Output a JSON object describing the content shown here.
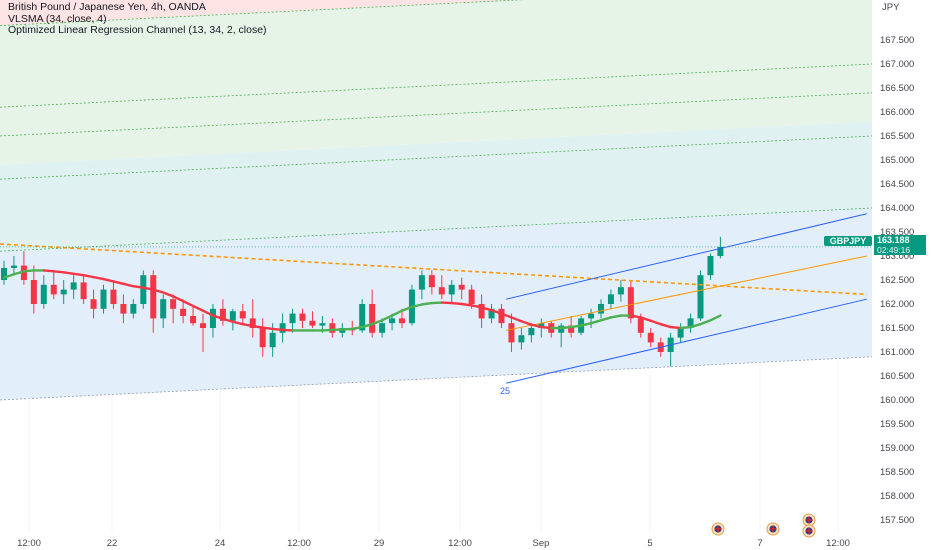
{
  "legend": {
    "symbol_line": "British Pound / Japanese Yen, 4h, OANDA",
    "indicator1": "VLSMA (34, close, 4)",
    "indicator2": "Optimized Linear Regression Channel (13, 34, 2, close)"
  },
  "price_tag": {
    "symbol": "GBPJPY",
    "price": "163.188",
    "countdown": "02:49:16"
  },
  "marker_25": "25",
  "colors": {
    "up": "#089981",
    "down": "#f23645",
    "ma_up": "#4caf50",
    "ma_down": "#f23645",
    "reg_channel": "#2962ff",
    "reg_mid": "#ff9800",
    "dashed_mid": "#ff9800"
  },
  "chart_data": {
    "type": "candlestick",
    "title": "British Pound / Japanese Yen, 4h, OANDA",
    "currency_label": "JPY",
    "y_ticks": [
      "167.500",
      "167.000",
      "166.500",
      "166.000",
      "165.500",
      "165.000",
      "164.500",
      "164.000",
      "163.500",
      "163.000",
      "162.500",
      "162.000",
      "161.500",
      "161.000",
      "160.500",
      "160.000",
      "159.500",
      "159.000",
      "158.500",
      "158.000",
      "157.500"
    ],
    "x_ticks": [
      "12:00",
      "22",
      "24",
      "12:00",
      "29",
      "12:00",
      "Sep",
      "5",
      "7",
      "12:00"
    ],
    "last_price": 163.188,
    "candles": [
      [
        162.5,
        162.9,
        162.4,
        162.75
      ],
      [
        162.75,
        163.0,
        162.6,
        162.8
      ],
      [
        162.8,
        163.1,
        162.4,
        162.5
      ],
      [
        162.5,
        162.8,
        161.8,
        162.0
      ],
      [
        162.0,
        162.6,
        161.9,
        162.4
      ],
      [
        162.4,
        162.7,
        162.1,
        162.2
      ],
      [
        162.2,
        162.5,
        162.0,
        162.3
      ],
      [
        162.3,
        162.6,
        162.1,
        162.45
      ],
      [
        162.45,
        162.6,
        162.0,
        162.1
      ],
      [
        162.1,
        162.3,
        161.7,
        161.9
      ],
      [
        161.9,
        162.4,
        161.8,
        162.3
      ],
      [
        162.3,
        162.5,
        161.9,
        162.0
      ],
      [
        162.0,
        162.2,
        161.6,
        161.8
      ],
      [
        161.8,
        162.1,
        161.7,
        162.0
      ],
      [
        162.0,
        162.7,
        161.9,
        162.6
      ],
      [
        162.6,
        162.7,
        161.4,
        161.7
      ],
      [
        161.7,
        162.2,
        161.5,
        162.1
      ],
      [
        162.1,
        162.2,
        161.6,
        161.9
      ],
      [
        161.9,
        162.1,
        161.6,
        161.75
      ],
      [
        161.75,
        161.95,
        161.55,
        161.6
      ],
      [
        161.6,
        161.8,
        161.0,
        161.5
      ],
      [
        161.5,
        162.0,
        161.3,
        161.9
      ],
      [
        161.9,
        162.1,
        161.55,
        161.65
      ],
      [
        161.65,
        161.9,
        161.45,
        161.85
      ],
      [
        161.85,
        162.0,
        161.6,
        161.7
      ],
      [
        161.7,
        162.1,
        161.3,
        161.5
      ],
      [
        161.5,
        161.7,
        160.9,
        161.1
      ],
      [
        161.1,
        161.6,
        160.9,
        161.4
      ],
      [
        161.4,
        161.8,
        161.2,
        161.6
      ],
      [
        161.6,
        161.9,
        161.4,
        161.8
      ],
      [
        161.8,
        161.9,
        161.5,
        161.65
      ],
      [
        161.65,
        161.85,
        161.5,
        161.55
      ],
      [
        161.55,
        161.75,
        161.4,
        161.6
      ],
      [
        161.6,
        161.7,
        161.3,
        161.4
      ],
      [
        161.4,
        161.6,
        161.3,
        161.5
      ],
      [
        161.5,
        161.65,
        161.35,
        161.45
      ],
      [
        161.45,
        162.1,
        161.4,
        162.0
      ],
      [
        162.0,
        162.3,
        161.3,
        161.4
      ],
      [
        161.4,
        161.7,
        161.3,
        161.6
      ],
      [
        161.6,
        161.8,
        161.45,
        161.7
      ],
      [
        161.7,
        161.9,
        161.5,
        161.6
      ],
      [
        161.6,
        162.4,
        161.55,
        162.3
      ],
      [
        162.3,
        162.7,
        162.1,
        162.6
      ],
      [
        162.6,
        162.7,
        162.2,
        162.35
      ],
      [
        162.35,
        162.6,
        162.1,
        162.2
      ],
      [
        162.2,
        162.5,
        162.0,
        162.4
      ],
      [
        162.4,
        162.55,
        162.1,
        162.3
      ],
      [
        162.3,
        162.4,
        161.9,
        162.0
      ],
      [
        162.0,
        162.2,
        161.5,
        161.7
      ],
      [
        161.7,
        162.0,
        161.6,
        161.9
      ],
      [
        161.9,
        162.0,
        161.5,
        161.6
      ],
      [
        161.6,
        161.8,
        161.0,
        161.2
      ],
      [
        161.2,
        161.5,
        161.05,
        161.35
      ],
      [
        161.35,
        161.6,
        161.2,
        161.5
      ],
      [
        161.5,
        161.7,
        161.3,
        161.6
      ],
      [
        161.6,
        161.65,
        161.3,
        161.4
      ],
      [
        161.4,
        161.6,
        161.1,
        161.55
      ],
      [
        161.55,
        161.75,
        161.3,
        161.4
      ],
      [
        161.4,
        161.75,
        161.35,
        161.7
      ],
      [
        161.7,
        161.9,
        161.5,
        161.8
      ],
      [
        161.8,
        162.1,
        161.7,
        162.0
      ],
      [
        162.0,
        162.3,
        161.9,
        162.2
      ],
      [
        162.2,
        162.5,
        162.05,
        162.35
      ],
      [
        162.35,
        162.5,
        161.6,
        161.7
      ],
      [
        161.7,
        161.8,
        161.3,
        161.4
      ],
      [
        161.4,
        161.5,
        161.1,
        161.2
      ],
      [
        161.2,
        161.3,
        160.9,
        161.0
      ],
      [
        161.0,
        161.4,
        160.7,
        161.3
      ],
      [
        161.3,
        161.6,
        161.2,
        161.5
      ],
      [
        161.5,
        161.8,
        161.4,
        161.7
      ],
      [
        161.7,
        162.7,
        161.65,
        162.6
      ],
      [
        162.6,
        163.05,
        162.5,
        163.0
      ],
      [
        163.0,
        163.4,
        162.95,
        163.19
      ]
    ],
    "vlsma": [
      162.55,
      162.62,
      162.68,
      162.7,
      162.7,
      162.68,
      162.66,
      162.63,
      162.6,
      162.56,
      162.52,
      162.47,
      162.42,
      162.37,
      162.34,
      162.3,
      162.24,
      162.16,
      162.06,
      161.96,
      161.86,
      161.76,
      161.69,
      161.63,
      161.58,
      161.54,
      161.51,
      161.48,
      161.46,
      161.45,
      161.45,
      161.45,
      161.45,
      161.46,
      161.47,
      161.48,
      161.52,
      161.58,
      161.66,
      161.76,
      161.86,
      161.94,
      161.99,
      162.02,
      162.03,
      162.02,
      162.0,
      161.97,
      161.93,
      161.87,
      161.8,
      161.72,
      161.64,
      161.57,
      161.52,
      161.5,
      161.5,
      161.52,
      161.55,
      161.6,
      161.66,
      161.72,
      161.76,
      161.76,
      161.72,
      161.65,
      161.58,
      161.52,
      161.5,
      161.52,
      161.58,
      161.66,
      161.76
    ],
    "regression_channel": {
      "upper": [
        [
          0.543,
          162.1
        ],
        [
          0.93,
          163.88
        ]
      ],
      "mid": [
        [
          0.543,
          161.45
        ],
        [
          0.93,
          163.0
        ]
      ],
      "lower": [
        [
          0.543,
          160.35
        ],
        [
          0.93,
          162.1
        ]
      ]
    },
    "dashed_regression_mid": [
      [
        0.0,
        163.25
      ],
      [
        0.93,
        162.2
      ]
    ],
    "zones": [
      {
        "name": "red",
        "from": 167.8,
        "to": 168.5
      },
      {
        "name": "green_light",
        "from": 164.9,
        "to": 167.8
      },
      {
        "name": "teal",
        "from": 163.15,
        "to": 164.9
      },
      {
        "name": "blue_light",
        "from": 160.0,
        "to": 163.15
      }
    ]
  }
}
